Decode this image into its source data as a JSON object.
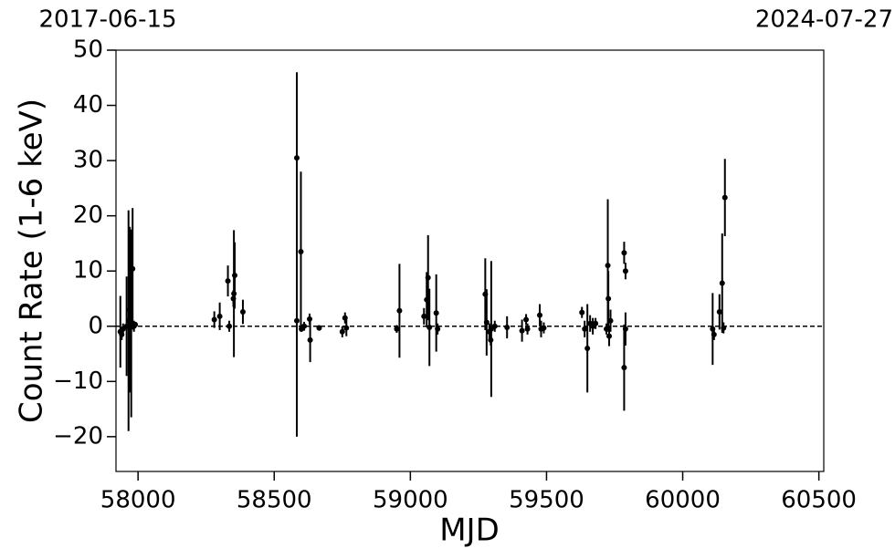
{
  "chart_data": {
    "type": "errorbar",
    "xlabel": "MJD",
    "ylabel": "Count Rate (1-6 keV)",
    "xlim": [
      57919,
      60518
    ],
    "ylim": [
      -26.3,
      50
    ],
    "xticks": [
      58000,
      58500,
      59000,
      59500,
      60000,
      60500
    ],
    "yticks": [
      {
        "value": -20,
        "label": "−20"
      },
      {
        "value": -10,
        "label": "−10"
      },
      0,
      10,
      20,
      30,
      40,
      50
    ],
    "x2ticks": [
      {
        "value": 57919,
        "label": "2017-06-15"
      },
      {
        "value": 60518,
        "label": "2024-07-27"
      }
    ],
    "reference_line": 0,
    "series": [
      {
        "color": "#000000",
        "x": [
          57935,
          57940,
          57945,
          57958,
          57965,
          57970,
          57975,
          57980,
          57985,
          57990,
          58280,
          58300,
          58330,
          58335,
          58350,
          58355,
          58352,
          58385,
          58583,
          58583,
          58598,
          58600,
          58610,
          58630,
          58632,
          58665,
          58750,
          58760,
          58765,
          58950,
          58960,
          59050,
          59060,
          59065,
          59070,
          59095,
          59100,
          59275,
          59280,
          59290,
          59295,
          59297,
          59310,
          59355,
          59410,
          59425,
          59430,
          59475,
          59480,
          59490,
          59630,
          59640,
          59650,
          59660,
          59670,
          59680,
          59720,
          59725,
          59727,
          59730,
          59735,
          59785,
          59790,
          59785,
          59790,
          60110,
          60115,
          60135,
          60145,
          60150,
          60155
        ],
        "values": [
          -1,
          -1.5,
          -0.5,
          0,
          1,
          3,
          0.5,
          10.4,
          0,
          0.3,
          1.2,
          1.8,
          8.2,
          0,
          5,
          9.2,
          5.9,
          2.6,
          30.5,
          1,
          13.5,
          -0.5,
          0,
          1.3,
          -2.5,
          -0.3,
          -1,
          1.5,
          -0.3,
          -0.5,
          2.8,
          1.8,
          4.8,
          8.8,
          -0.2,
          2.4,
          -0.5,
          5.8,
          0.7,
          -1,
          -2.5,
          -0.5,
          0,
          -0.2,
          -0.8,
          1.2,
          -0.5,
          2,
          -0.5,
          -0.3,
          2.5,
          -0.5,
          -4,
          0.5,
          0,
          0.5,
          -0.5,
          11,
          5,
          -1.8,
          1,
          13.3,
          10,
          -7.5,
          -0.5,
          -0.5,
          -1.5,
          2.6,
          7.8,
          -0.3,
          23.3
        ],
        "errors": [
          6.5,
          1,
          1,
          9,
          20,
          15,
          17,
          11,
          1,
          0.5,
          1.5,
          2.5,
          2.8,
          1,
          1.5,
          6,
          11.5,
          2.2,
          15.5,
          21,
          14.5,
          0.5,
          0.8,
          1,
          4,
          0.5,
          1,
          1,
          1.5,
          0.7,
          8.5,
          1.5,
          5,
          7.7,
          7,
          7,
          1,
          6.5,
          6,
          1.5,
          1,
          12.3,
          1,
          2,
          2,
          1,
          1,
          2,
          1.5,
          1,
          1,
          1.5,
          8,
          1.5,
          1.5,
          1,
          1,
          12,
          5,
          1.8,
          2,
          2,
          1.5,
          7.8,
          3,
          6.5,
          1,
          3.2,
          9,
          1,
          7
        ]
      }
    ]
  }
}
